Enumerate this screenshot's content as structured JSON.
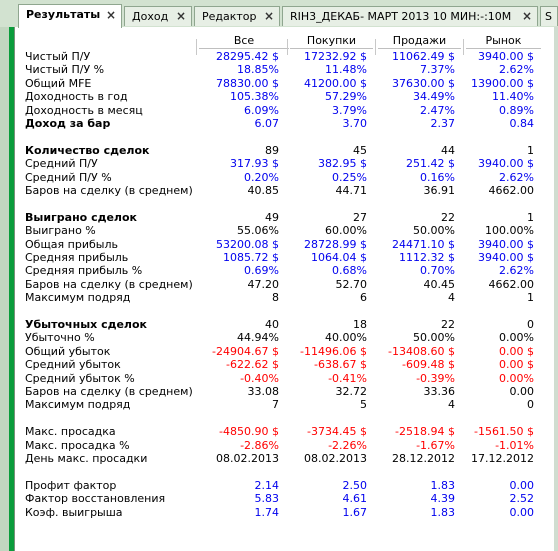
{
  "tabs": [
    {
      "label": "Результаты",
      "active": true,
      "closable": true
    },
    {
      "label": "Доход",
      "active": false,
      "closable": true
    },
    {
      "label": "Редактор",
      "active": false,
      "closable": true
    },
    {
      "label": "RIH3_ДЕКАБ- МАРТ 2013 10 МИН:-:10М",
      "active": false,
      "closable": true
    },
    {
      "label": "S",
      "active": false,
      "closable": false
    }
  ],
  "columns": [
    "Все",
    "Покупки",
    "Продажи",
    "Рынок"
  ],
  "rows": [
    {
      "label": "Чистый П/У",
      "values": [
        "28295.42 $",
        "17232.92 $",
        "11062.49 $",
        "3940.00 $"
      ],
      "color": "blue"
    },
    {
      "label": "Чистый П/У %",
      "values": [
        "18.85%",
        "11.48%",
        "7.37%",
        "2.62%"
      ],
      "color": "blue"
    },
    {
      "label": "Общий MFE",
      "values": [
        "78830.00 $",
        "41200.00 $",
        "37630.00 $",
        "13900.00 $"
      ],
      "color": "blue"
    },
    {
      "label": "Доходность в год",
      "values": [
        "105.38%",
        "57.29%",
        "34.49%",
        "11.40%"
      ],
      "color": "blue"
    },
    {
      "label": "Доходность в месяц",
      "values": [
        "6.09%",
        "3.79%",
        "2.47%",
        "0.89%"
      ],
      "color": "blue"
    },
    {
      "label": "Доход за бар",
      "values": [
        "6.07",
        "3.70",
        "2.37",
        "0.84"
      ],
      "color": "blue",
      "bold": true
    },
    {
      "spacer": true
    },
    {
      "label": "Количество сделок",
      "values": [
        "89",
        "45",
        "44",
        "1"
      ],
      "color": "black",
      "bold": true
    },
    {
      "label": "Средний П/У",
      "values": [
        "317.93 $",
        "382.95 $",
        "251.42 $",
        "3940.00 $"
      ],
      "color": "blue"
    },
    {
      "label": "Средний П/У %",
      "values": [
        "0.20%",
        "0.25%",
        "0.16%",
        "2.62%"
      ],
      "color": "blue"
    },
    {
      "label": "Баров на сделку (в среднем)",
      "values": [
        "40.85",
        "44.71",
        "36.91",
        "4662.00"
      ],
      "color": "black"
    },
    {
      "spacer": true
    },
    {
      "label": "Выиграно сделок",
      "values": [
        "49",
        "27",
        "22",
        "1"
      ],
      "color": "black",
      "bold": true
    },
    {
      "label": "Выиграно %",
      "values": [
        "55.06%",
        "60.00%",
        "50.00%",
        "100.00%"
      ],
      "color": "black"
    },
    {
      "label": "Общая прибыль",
      "values": [
        "53200.08 $",
        "28728.99 $",
        "24471.10 $",
        "3940.00 $"
      ],
      "color": "blue"
    },
    {
      "label": "Средняя прибыль",
      "values": [
        "1085.72 $",
        "1064.04 $",
        "1112.32 $",
        "3940.00 $"
      ],
      "color": "blue"
    },
    {
      "label": "Средняя прибыль %",
      "values": [
        "0.69%",
        "0.68%",
        "0.70%",
        "2.62%"
      ],
      "color": "blue"
    },
    {
      "label": "Баров на сделку (в среднем)",
      "values": [
        "47.20",
        "52.70",
        "40.45",
        "4662.00"
      ],
      "color": "black"
    },
    {
      "label": "Максимум подряд",
      "values": [
        "8",
        "6",
        "4",
        "1"
      ],
      "color": "black"
    },
    {
      "spacer": true
    },
    {
      "label": "Убыточных сделок",
      "values": [
        "40",
        "18",
        "22",
        "0"
      ],
      "color": "black",
      "bold": true
    },
    {
      "label": "Убыточно %",
      "values": [
        "44.94%",
        "40.00%",
        "50.00%",
        "0.00%"
      ],
      "color": "black"
    },
    {
      "label": "Общий убыток",
      "values": [
        "-24904.67 $",
        "-11496.06 $",
        "-13408.60 $",
        "0.00 $"
      ],
      "color": "red"
    },
    {
      "label": "Средний убыток",
      "values": [
        "-622.62 $",
        "-638.67 $",
        "-609.48 $",
        "0.00 $"
      ],
      "color": "red"
    },
    {
      "label": "Средний убыток %",
      "values": [
        "-0.40%",
        "-0.41%",
        "-0.39%",
        "0.00%"
      ],
      "color": "red"
    },
    {
      "label": "Баров на сделку (в среднем)",
      "values": [
        "33.08",
        "32.72",
        "33.36",
        "0.00"
      ],
      "color": "black"
    },
    {
      "label": "Максимум подряд",
      "values": [
        "7",
        "5",
        "4",
        "0"
      ],
      "color": "black"
    },
    {
      "spacer": true
    },
    {
      "label": "Макс. просадка",
      "values": [
        "-4850.90 $",
        "-3734.45 $",
        "-2518.94 $",
        "-1561.50 $"
      ],
      "color": "red"
    },
    {
      "label": "Макс. просадка %",
      "values": [
        "-2.86%",
        "-2.26%",
        "-1.67%",
        "-1.01%"
      ],
      "color": "red"
    },
    {
      "label": "День макс. просадки",
      "values": [
        "08.02.2013",
        "08.02.2013",
        "28.12.2012",
        "17.12.2012"
      ],
      "color": "black"
    },
    {
      "spacer": true
    },
    {
      "label": "Профит фактор",
      "values": [
        "2.14",
        "2.50",
        "1.83",
        "0.00"
      ],
      "color": "blue"
    },
    {
      "label": "Фактор восстановления",
      "values": [
        "5.83",
        "4.61",
        "4.39",
        "2.52"
      ],
      "color": "blue"
    },
    {
      "label": "Коэф. выигрыша",
      "values": [
        "1.74",
        "1.67",
        "1.83",
        "0.00"
      ],
      "color": "blue"
    }
  ]
}
